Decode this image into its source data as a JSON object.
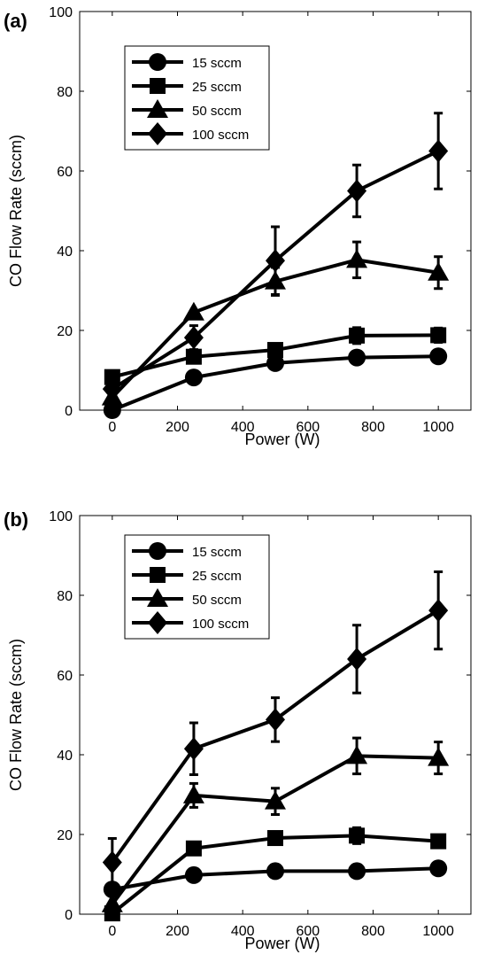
{
  "chart_data": [
    {
      "type": "line",
      "panel_label": "(a)",
      "xlabel": "Power (W)",
      "ylabel": "CO Flow Rate (sccm)",
      "x": [
        0,
        250,
        500,
        750,
        1000
      ],
      "xticks": [
        0,
        200,
        400,
        600,
        800,
        1000
      ],
      "yticks": [
        0,
        20,
        40,
        60,
        80,
        100
      ],
      "xlim": [
        -100,
        1100
      ],
      "ylim": [
        0,
        100
      ],
      "legend_position": "top-left",
      "series": [
        {
          "name": "15 sccm",
          "marker": "circle",
          "values": [
            0,
            8.2,
            11.8,
            13.2,
            13.5
          ],
          "errors": [
            0,
            0,
            0,
            0,
            0
          ]
        },
        {
          "name": "25 sccm",
          "marker": "square",
          "values": [
            8.3,
            13.4,
            15.1,
            18.7,
            18.8
          ],
          "errors": [
            0,
            0,
            0,
            2,
            1.8
          ]
        },
        {
          "name": "50 sccm",
          "marker": "triangle",
          "values": [
            3.2,
            24.5,
            32.3,
            37.7,
            34.5
          ],
          "errors": [
            0,
            0,
            3.5,
            4.5,
            4
          ]
        },
        {
          "name": "100 sccm",
          "marker": "diamond",
          "values": [
            5.3,
            18.2,
            37.5,
            55.0,
            65.0
          ],
          "errors": [
            0,
            3,
            8.5,
            6.5,
            9.5
          ]
        }
      ]
    },
    {
      "type": "line",
      "panel_label": "(b)",
      "xlabel": "Power (W)",
      "ylabel": "CO Flow Rate (sccm)",
      "x": [
        0,
        250,
        500,
        750,
        1000
      ],
      "xticks": [
        0,
        200,
        400,
        600,
        800,
        1000
      ],
      "yticks": [
        0,
        20,
        40,
        60,
        80,
        100
      ],
      "xlim": [
        -100,
        1100
      ],
      "ylim": [
        0,
        100
      ],
      "legend_position": "top-left",
      "series": [
        {
          "name": "15 sccm",
          "marker": "circle",
          "values": [
            6.2,
            9.8,
            10.8,
            10.8,
            11.5
          ],
          "errors": [
            0,
            0,
            0,
            0,
            0
          ]
        },
        {
          "name": "25 sccm",
          "marker": "square",
          "values": [
            0.2,
            16.5,
            19.1,
            19.7,
            18.3
          ],
          "errors": [
            0,
            0,
            1.5,
            2,
            1.5
          ]
        },
        {
          "name": "50 sccm",
          "marker": "triangle",
          "values": [
            2.5,
            29.8,
            28.3,
            39.7,
            39.2
          ],
          "errors": [
            0,
            3,
            3.3,
            4.5,
            4
          ]
        },
        {
          "name": "100 sccm",
          "marker": "diamond",
          "values": [
            13.0,
            41.5,
            48.8,
            64.0,
            76.2
          ],
          "errors": [
            6,
            6.5,
            5.5,
            8.5,
            9.7
          ]
        }
      ]
    }
  ]
}
